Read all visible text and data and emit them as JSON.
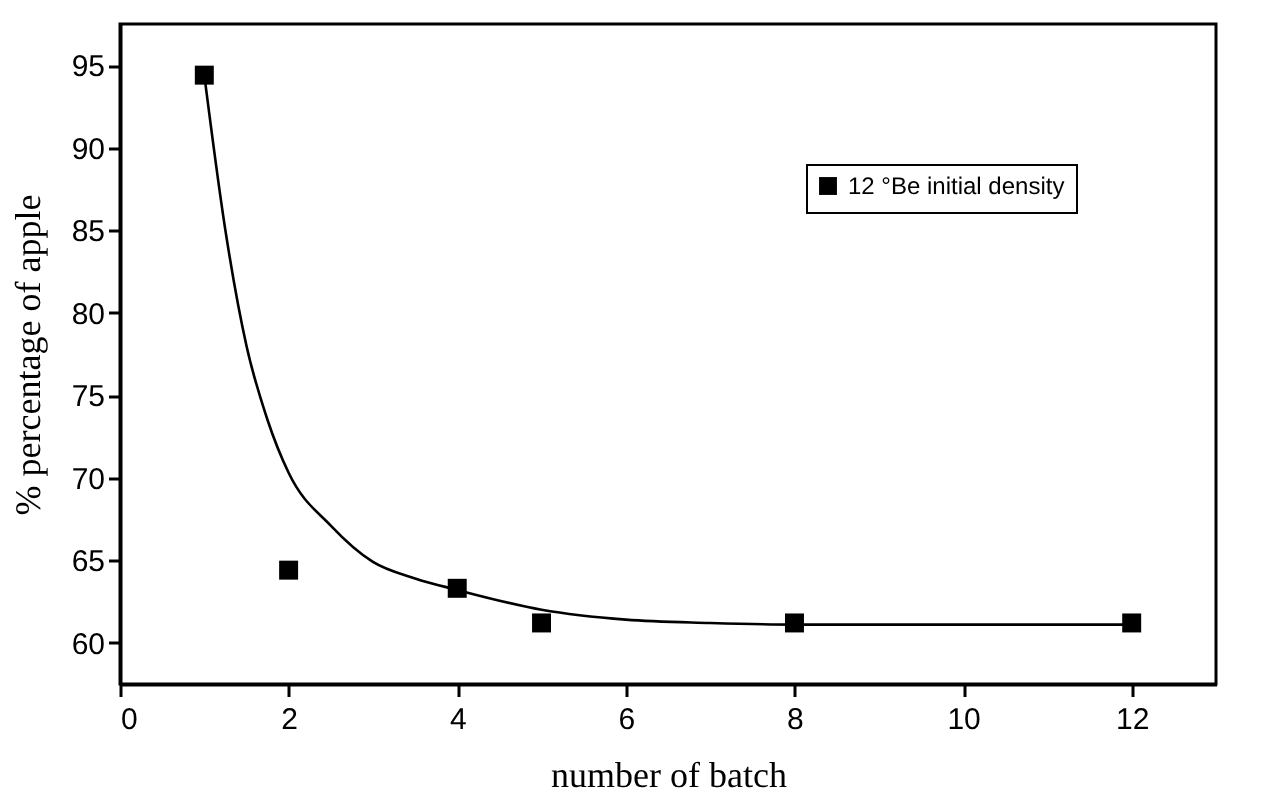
{
  "chart_data": {
    "type": "scatter",
    "xlabel": "number of batch",
    "ylabel": "% percentage of apple",
    "xlim": [
      0,
      13
    ],
    "ylim": [
      57.5,
      97.5
    ],
    "xticks": [
      0,
      2,
      4,
      6,
      8,
      10,
      12
    ],
    "yticks": [
      60,
      65,
      70,
      75,
      80,
      85,
      90,
      95
    ],
    "legend": "top right",
    "grid": false,
    "series": [
      {
        "name": "12 °Be initial density",
        "type": "scatter",
        "marker": "square",
        "color": "#000000",
        "x": [
          1,
          2,
          4,
          5,
          8,
          12
        ],
        "values": [
          94.4,
          64.4,
          63.3,
          61.2,
          61.2,
          61.2
        ]
      },
      {
        "type": "line",
        "marker": "none",
        "color": "#000000",
        "x": [
          1,
          1.25,
          1.5,
          1.75,
          2,
          2.5,
          3,
          3.5,
          4,
          5,
          6,
          7,
          8,
          10,
          12
        ],
        "values": [
          94.4,
          85,
          78,
          73.5,
          70.3,
          67.1,
          64.9,
          63.9,
          63.2,
          62,
          61.4,
          61.2,
          61.1,
          61.1,
          61.1
        ]
      }
    ]
  }
}
